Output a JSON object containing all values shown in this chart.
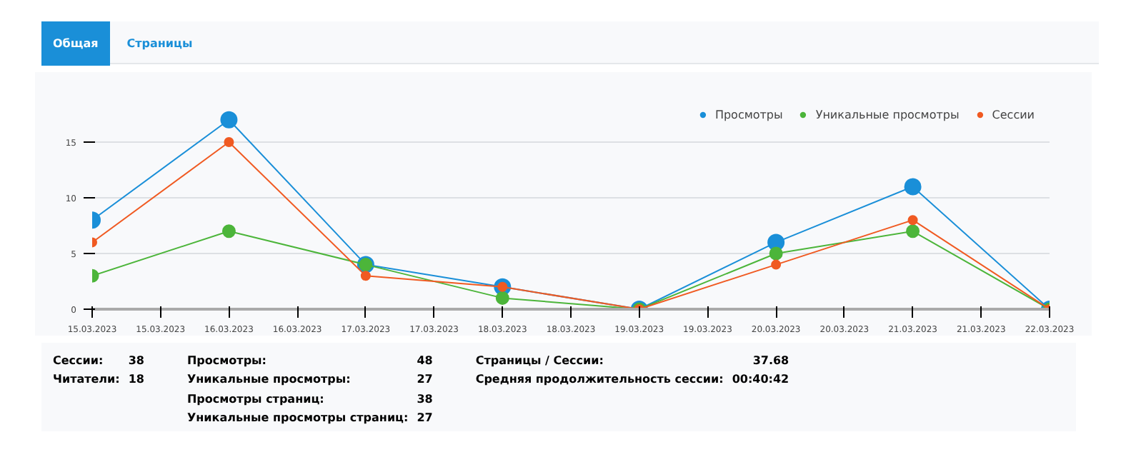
{
  "chart_data": {
    "type": "line",
    "x": [
      "2023-03-15",
      "2023-03-16",
      "2023-03-17",
      "2023-03-18",
      "2023-03-19",
      "2023-03-20",
      "2023-03-21",
      "2023-03-22"
    ],
    "series": [
      {
        "name": "Просмотры",
        "color": "#1a8fd8",
        "values": [
          8,
          17,
          4,
          2,
          0,
          6,
          11,
          0
        ]
      },
      {
        "name": "Уникальные просмотры",
        "color": "#4cb53a",
        "values": [
          3,
          7,
          4,
          1,
          0,
          5,
          7,
          0
        ]
      },
      {
        "name": "Сессии",
        "color": "#f05a22",
        "values": [
          6,
          15,
          3,
          2,
          0,
          4,
          8,
          0
        ]
      }
    ],
    "xlim": [
      "2023-03-15",
      "2023-03-22"
    ],
    "xticks": [
      {
        "value": "2023-03-15",
        "label": "15.03.2023"
      },
      {
        "value": "2023-03-15T12:00",
        "label": "15.03.2023"
      },
      {
        "value": "2023-03-16",
        "label": "16.03.2023"
      },
      {
        "value": "2023-03-16T12:00",
        "label": "16.03.2023"
      },
      {
        "value": "2023-03-17",
        "label": "17.03.2023"
      },
      {
        "value": "2023-03-17T12:00",
        "label": "17.03.2023"
      },
      {
        "value": "2023-03-18",
        "label": "18.03.2023"
      },
      {
        "value": "2023-03-18T12:00",
        "label": "18.03.2023"
      },
      {
        "value": "2023-03-19",
        "label": "19.03.2023"
      },
      {
        "value": "2023-03-19T12:00",
        "label": "19.03.2023"
      },
      {
        "value": "2023-03-20",
        "label": "20.03.2023"
      },
      {
        "value": "2023-03-20T12:00",
        "label": "20.03.2023"
      },
      {
        "value": "2023-03-21",
        "label": "21.03.2023"
      },
      {
        "value": "2023-03-21T12:00",
        "label": "21.03.2023"
      },
      {
        "value": "2023-03-22",
        "label": "22.03.2023"
      }
    ],
    "ylim": [
      0,
      20
    ],
    "yticks": [
      0,
      5,
      10,
      15
    ],
    "grid": "y",
    "legend": "top right",
    "marker": "circle",
    "line_style": "solid",
    "annotations": [
      "Общая",
      "Страницы",
      "Сессии: 38",
      "Читатели: 18",
      "Просмотры: 48",
      "Уникальные просмотры: 27",
      "Просмотры страниц: 38",
      "Уникальные просмотры страниц: 27",
      "Страницы / Сессии: 37.68",
      "Средняя продолжительность сессии: 00:40:42"
    ]
  }
}
